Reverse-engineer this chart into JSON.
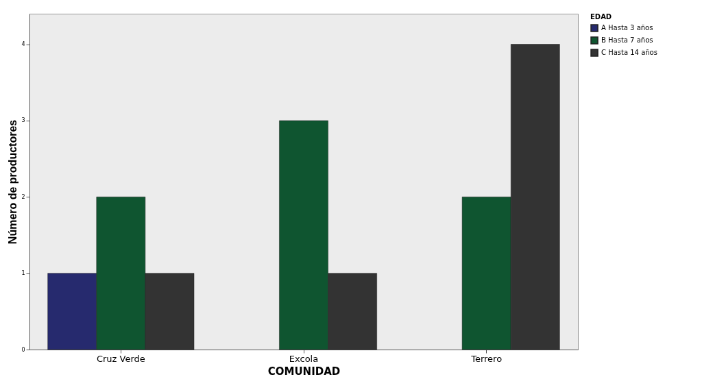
{
  "chart_data": {
    "type": "bar",
    "xlabel": "COMUNIDAD",
    "ylabel": "Número de productores",
    "legend_title": "EDAD",
    "categories": [
      "Cruz Verde",
      "Excola",
      "Terrero"
    ],
    "series": [
      {
        "name": "A Hasta 3 años",
        "color": "#262a6e",
        "values": [
          1,
          null,
          null
        ]
      },
      {
        "name": "B Hasta 7 años",
        "color": "#0f5530",
        "values": [
          2,
          3,
          2
        ]
      },
      {
        "name": "C Hasta 14 años",
        "color": "#333333",
        "values": [
          1,
          1,
          4
        ]
      }
    ],
    "ylim": [
      0,
      4.4
    ],
    "yticks": [
      0,
      1,
      2,
      3,
      4
    ],
    "grid": false,
    "legend": "top right"
  }
}
